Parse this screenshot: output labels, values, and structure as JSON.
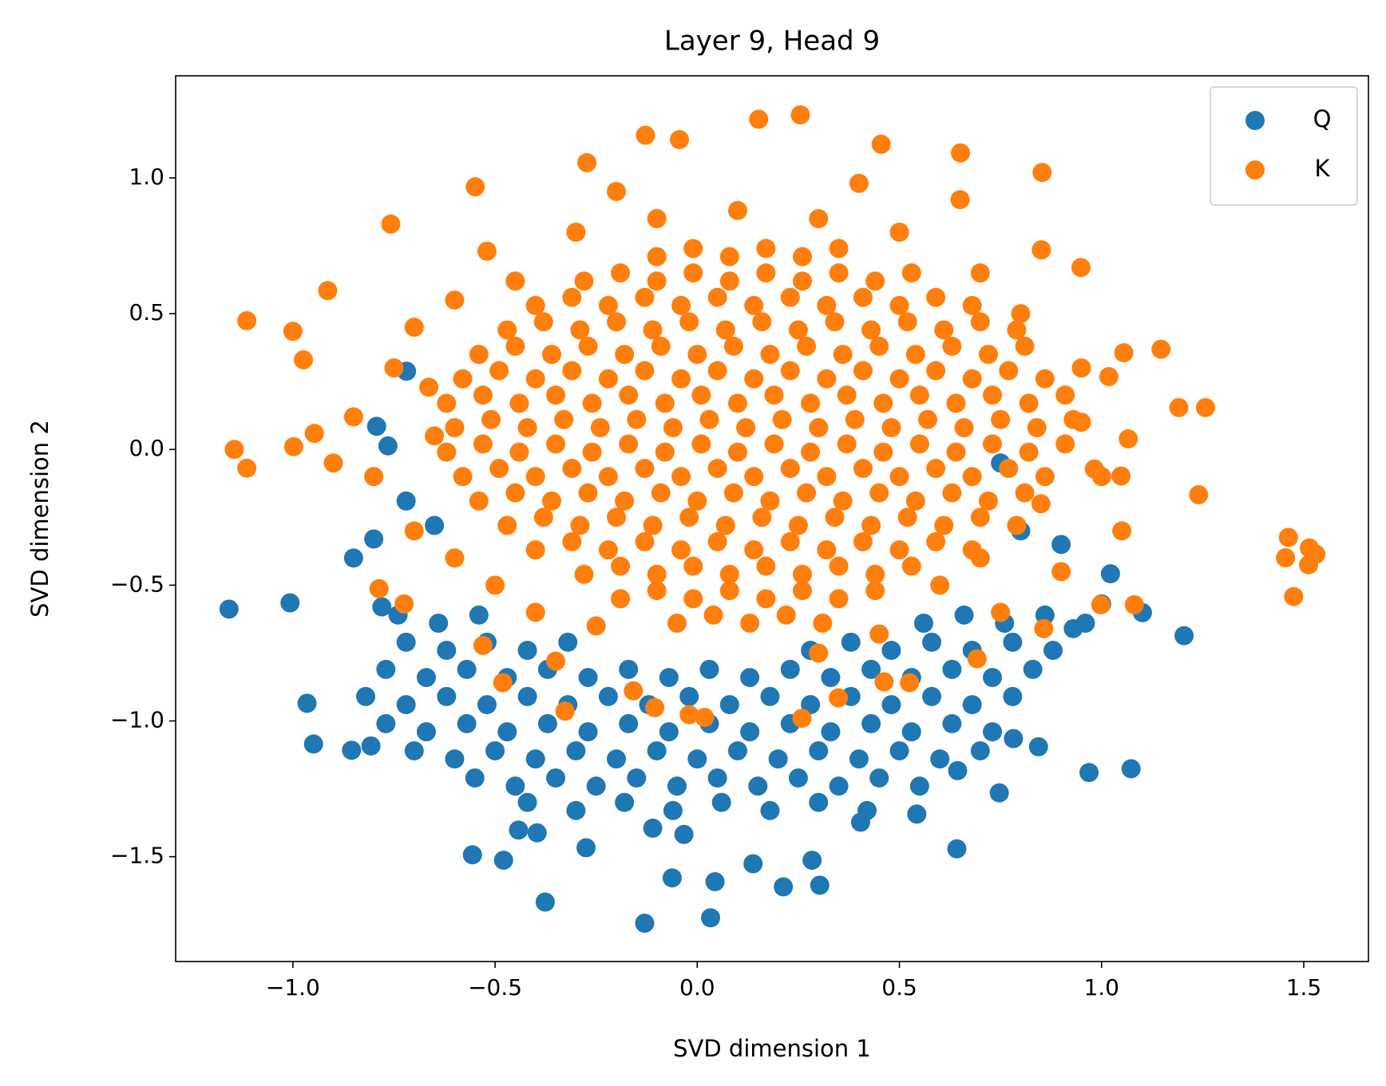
{
  "chart_data": {
    "type": "scatter",
    "title": "Layer 9, Head 9",
    "x_label": "SVD dimension 1",
    "y_label": "SVD dimension 2",
    "xlim": [
      -1.29,
      1.66
    ],
    "ylim": [
      -1.886,
      1.376
    ],
    "xticks": [
      {
        "value": -1.0,
        "label": "−1.0"
      },
      {
        "value": -0.5,
        "label": "−0.5"
      },
      {
        "value": 0.0,
        "label": "0.0"
      },
      0.5,
      {
        "value": 1.0,
        "label": "1.0"
      },
      1.5
    ],
    "yticks": [
      {
        "value": -1.5,
        "label": "−1.5"
      },
      {
        "value": -1.0,
        "label": "−1.0"
      },
      {
        "value": -0.5,
        "label": "−0.5"
      },
      {
        "value": 0.0,
        "label": "0.0"
      },
      0.5,
      {
        "value": 1.0,
        "label": "1.0"
      }
    ],
    "grid": false,
    "legend": "upper right",
    "series": [
      {
        "name": "Q",
        "color": "#1f77b4",
        "x": [
          -1.158,
          -1.007,
          -0.965,
          -0.949,
          -0.855,
          -0.807,
          -0.556,
          -0.479,
          -0.376,
          -0.13,
          0.033,
          -0.062,
          0.044,
          0.138,
          0.213,
          0.303,
          0.284,
          0.642,
          0.543,
          0.969,
          1.073,
          0.844,
          0.782,
          1.101,
          1.204,
          1.0,
          1.022,
          0.93,
          -0.719,
          -0.793,
          -0.765,
          -0.275,
          -0.396,
          -0.442,
          -0.11,
          -0.033,
          0.747,
          0.644,
          0.404,
          -0.72,
          -0.65,
          0.75,
          0.8,
          0.9,
          -0.85,
          -0.8,
          -0.78,
          -0.74,
          -0.64,
          -0.54,
          0.56,
          0.66,
          0.76,
          0.86,
          0.96,
          -0.72,
          -0.62,
          -0.52,
          -0.42,
          -0.32,
          0.28,
          0.38,
          0.48,
          0.58,
          0.68,
          0.78,
          0.88,
          -0.77,
          -0.67,
          -0.57,
          -0.47,
          -0.37,
          -0.27,
          -0.17,
          -0.07,
          0.03,
          0.13,
          0.23,
          0.33,
          0.43,
          0.53,
          0.63,
          0.73,
          0.83,
          -0.82,
          -0.72,
          -0.62,
          -0.52,
          -0.42,
          -0.32,
          -0.22,
          -0.12,
          -0.02,
          0.08,
          0.18,
          0.28,
          0.38,
          0.48,
          0.58,
          0.68,
          0.78,
          -0.77,
          -0.67,
          -0.57,
          -0.47,
          -0.37,
          -0.27,
          -0.17,
          -0.07,
          0.03,
          0.13,
          0.23,
          0.33,
          0.43,
          0.53,
          0.63,
          0.73,
          -0.7,
          -0.6,
          -0.5,
          -0.4,
          -0.3,
          -0.2,
          -0.1,
          0.0,
          0.1,
          0.2,
          0.3,
          0.4,
          0.5,
          0.6,
          0.7,
          -0.55,
          -0.45,
          -0.35,
          -0.25,
          -0.15,
          -0.05,
          0.05,
          0.15,
          0.25,
          0.35,
          0.45,
          0.55,
          -0.42,
          -0.3,
          -0.18,
          -0.06,
          0.06,
          0.18,
          0.3,
          0.42
        ],
        "values": [
          -0.588,
          -0.565,
          -0.935,
          -1.085,
          -1.108,
          -1.092,
          -1.493,
          -1.513,
          -1.667,
          -1.745,
          -1.725,
          -1.578,
          -1.592,
          -1.526,
          -1.611,
          -1.605,
          -1.513,
          -1.471,
          -1.343,
          -1.19,
          -1.176,
          -1.095,
          -1.065,
          -0.601,
          -0.686,
          -0.569,
          -0.458,
          -0.66,
          0.288,
          0.085,
          0.013,
          -1.467,
          -1.412,
          -1.402,
          -1.395,
          -1.418,
          -1.265,
          -1.183,
          -1.373,
          -0.19,
          -0.28,
          -0.05,
          -0.3,
          -0.35,
          -0.4,
          -0.33,
          -0.58,
          -0.61,
          -0.64,
          -0.61,
          -0.64,
          -0.61,
          -0.64,
          -0.61,
          -0.64,
          -0.71,
          -0.74,
          -0.71,
          -0.74,
          -0.71,
          -0.74,
          -0.71,
          -0.74,
          -0.71,
          -0.74,
          -0.71,
          -0.74,
          -0.81,
          -0.84,
          -0.81,
          -0.84,
          -0.81,
          -0.84,
          -0.81,
          -0.84,
          -0.81,
          -0.84,
          -0.81,
          -0.84,
          -0.81,
          -0.84,
          -0.81,
          -0.84,
          -0.81,
          -0.91,
          -0.94,
          -0.91,
          -0.94,
          -0.91,
          -0.94,
          -0.91,
          -0.94,
          -0.91,
          -0.94,
          -0.91,
          -0.94,
          -0.91,
          -0.94,
          -0.91,
          -0.94,
          -0.91,
          -1.01,
          -1.04,
          -1.01,
          -1.04,
          -1.01,
          -1.04,
          -1.01,
          -1.04,
          -1.01,
          -1.04,
          -1.01,
          -1.04,
          -1.01,
          -1.04,
          -1.01,
          -1.04,
          -1.11,
          -1.14,
          -1.11,
          -1.14,
          -1.11,
          -1.14,
          -1.11,
          -1.14,
          -1.11,
          -1.14,
          -1.11,
          -1.14,
          -1.11,
          -1.14,
          -1.11,
          -1.21,
          -1.24,
          -1.21,
          -1.24,
          -1.21,
          -1.24,
          -1.21,
          -1.24,
          -1.21,
          -1.24,
          -1.21,
          -1.24,
          -1.3,
          -1.33,
          -1.3,
          -1.33,
          -1.3,
          -1.33,
          -1.3,
          -1.33
        ]
      },
      {
        "name": "K",
        "color": "#ff7f0e",
        "x": [
          -1.114,
          -1.145,
          -1.114,
          -1.0,
          -0.974,
          -0.998,
          -0.947,
          -0.914,
          -0.758,
          -0.549,
          -0.273,
          -0.128,
          -0.044,
          0.152,
          0.255,
          0.455,
          0.651,
          0.853,
          0.851,
          0.949,
          1.055,
          1.147,
          1.191,
          1.257,
          1.24,
          1.462,
          1.455,
          1.514,
          1.53,
          1.512,
          1.475,
          1.081,
          0.998,
          0.857,
          1.048,
          0.982,
          1.066,
          1.018,
          0.259,
          0.018,
          -0.02,
          -0.327,
          -0.105,
          0.349,
          -0.481,
          -0.53,
          -0.664,
          -0.787,
          -0.725,
          0.692,
          0.462,
          0.525,
          -0.158,
          -0.45,
          -0.6,
          -0.7,
          -0.75,
          -0.8,
          -0.7,
          -0.6,
          -0.5,
          -0.4,
          -0.25,
          0.6,
          0.7,
          0.85,
          0.95,
          0.95,
          0.8,
          0.7,
          0.5,
          0.3,
          0.1,
          -0.1,
          -0.3,
          -0.52,
          -0.85,
          -0.9,
          0.65,
          0.4,
          -0.2,
          1.05,
          0.9,
          0.75,
          -0.35,
          0.3,
          0.45,
          -0.65,
          1.0,
          -0.1,
          -0.01,
          0.08,
          0.17,
          0.26,
          0.35,
          -0.28,
          -0.19,
          -0.1,
          -0.01,
          0.08,
          0.17,
          0.26,
          0.35,
          0.44,
          0.53,
          -0.4,
          -0.31,
          -0.22,
          -0.13,
          -0.04,
          0.05,
          0.14,
          0.23,
          0.32,
          0.41,
          0.5,
          0.59,
          0.68,
          -0.47,
          -0.38,
          -0.29,
          -0.2,
          -0.11,
          -0.02,
          0.07,
          0.16,
          0.25,
          0.34,
          0.43,
          0.52,
          0.61,
          0.7,
          0.79,
          -0.54,
          -0.45,
          -0.36,
          -0.27,
          -0.18,
          -0.09,
          0.0,
          0.09,
          0.18,
          0.27,
          0.36,
          0.45,
          0.54,
          0.63,
          0.72,
          0.81,
          -0.58,
          -0.49,
          -0.4,
          -0.31,
          -0.22,
          -0.13,
          -0.04,
          0.05,
          0.14,
          0.23,
          0.32,
          0.41,
          0.5,
          0.59,
          0.68,
          0.77,
          0.86,
          -0.62,
          -0.53,
          -0.44,
          -0.35,
          -0.26,
          -0.17,
          -0.08,
          0.01,
          0.1,
          0.19,
          0.28,
          0.37,
          0.46,
          0.55,
          0.64,
          0.73,
          0.82,
          0.91,
          -0.6,
          -0.51,
          -0.42,
          -0.33,
          -0.24,
          -0.15,
          -0.06,
          0.03,
          0.12,
          0.21,
          0.3,
          0.39,
          0.48,
          0.57,
          0.66,
          0.75,
          0.84,
          0.93,
          -0.62,
          -0.53,
          -0.44,
          -0.35,
          -0.26,
          -0.17,
          -0.08,
          0.01,
          0.1,
          0.19,
          0.28,
          0.37,
          0.46,
          0.55,
          0.64,
          0.73,
          0.82,
          0.91,
          -0.58,
          -0.49,
          -0.4,
          -0.31,
          -0.22,
          -0.13,
          -0.04,
          0.05,
          0.14,
          0.23,
          0.32,
          0.41,
          0.5,
          0.59,
          0.68,
          0.77,
          0.86,
          -0.54,
          -0.45,
          -0.36,
          -0.27,
          -0.18,
          -0.09,
          0.0,
          0.09,
          0.18,
          0.27,
          0.36,
          0.45,
          0.54,
          0.63,
          0.72,
          0.81,
          -0.47,
          -0.38,
          -0.29,
          -0.2,
          -0.11,
          -0.02,
          0.07,
          0.16,
          0.25,
          0.34,
          0.43,
          0.52,
          0.61,
          0.7,
          0.79,
          -0.4,
          -0.31,
          -0.22,
          -0.13,
          -0.04,
          0.05,
          0.14,
          0.23,
          0.32,
          0.41,
          0.5,
          0.59,
          0.68,
          -0.28,
          -0.19,
          -0.1,
          -0.01,
          0.08,
          0.17,
          0.26,
          0.35,
          0.44,
          0.53,
          -0.19,
          -0.1,
          -0.01,
          0.08,
          0.17,
          0.26,
          0.35,
          0.44,
          -0.05,
          0.04,
          0.13,
          0.22,
          0.31
        ],
        "values": [
          0.474,
          0.0,
          -0.069,
          0.435,
          0.33,
          0.01,
          0.059,
          0.585,
          0.83,
          0.967,
          1.056,
          1.157,
          1.141,
          1.216,
          1.232,
          1.124,
          1.092,
          1.02,
          0.735,
          0.67,
          0.356,
          0.369,
          0.154,
          0.154,
          -0.167,
          -0.324,
          -0.399,
          -0.363,
          -0.386,
          -0.425,
          -0.542,
          -0.572,
          -0.572,
          -0.66,
          -0.098,
          -0.072,
          0.039,
          0.268,
          -0.99,
          -0.987,
          -0.977,
          -0.964,
          -0.951,
          -0.915,
          -0.859,
          -0.722,
          0.229,
          -0.513,
          -0.569,
          -0.771,
          -0.856,
          -0.859,
          -0.889,
          0.62,
          0.55,
          0.45,
          0.3,
          -0.1,
          -0.3,
          -0.4,
          -0.5,
          -0.6,
          -0.65,
          -0.5,
          -0.4,
          -0.2,
          0.1,
          0.3,
          0.5,
          0.65,
          0.8,
          0.85,
          0.88,
          0.85,
          0.8,
          0.73,
          0.12,
          -0.05,
          0.92,
          0.98,
          0.95,
          -0.3,
          -0.45,
          -0.6,
          -0.78,
          -0.75,
          -0.68,
          0.05,
          -0.1,
          0.71,
          0.74,
          0.71,
          0.74,
          0.71,
          0.74,
          0.62,
          0.65,
          0.62,
          0.65,
          0.62,
          0.65,
          0.62,
          0.65,
          0.62,
          0.65,
          0.53,
          0.56,
          0.53,
          0.56,
          0.53,
          0.56,
          0.53,
          0.56,
          0.53,
          0.56,
          0.53,
          0.56,
          0.53,
          0.44,
          0.47,
          0.44,
          0.47,
          0.44,
          0.47,
          0.44,
          0.47,
          0.44,
          0.47,
          0.44,
          0.47,
          0.44,
          0.47,
          0.44,
          0.35,
          0.38,
          0.35,
          0.38,
          0.35,
          0.38,
          0.35,
          0.38,
          0.35,
          0.38,
          0.35,
          0.38,
          0.35,
          0.38,
          0.35,
          0.38,
          0.26,
          0.29,
          0.26,
          0.29,
          0.26,
          0.29,
          0.26,
          0.29,
          0.26,
          0.29,
          0.26,
          0.29,
          0.26,
          0.29,
          0.26,
          0.29,
          0.26,
          0.17,
          0.2,
          0.17,
          0.2,
          0.17,
          0.2,
          0.17,
          0.2,
          0.17,
          0.2,
          0.17,
          0.2,
          0.17,
          0.2,
          0.17,
          0.2,
          0.17,
          0.2,
          0.08,
          0.11,
          0.08,
          0.11,
          0.08,
          0.11,
          0.08,
          0.11,
          0.08,
          0.11,
          0.08,
          0.11,
          0.08,
          0.11,
          0.08,
          0.11,
          0.08,
          0.11,
          -0.01,
          0.02,
          -0.01,
          0.02,
          -0.01,
          0.02,
          -0.01,
          0.02,
          -0.01,
          0.02,
          -0.01,
          0.02,
          -0.01,
          0.02,
          -0.01,
          0.02,
          -0.01,
          0.02,
          -0.1,
          -0.07,
          -0.1,
          -0.07,
          -0.1,
          -0.07,
          -0.1,
          -0.07,
          -0.1,
          -0.07,
          -0.1,
          -0.07,
          -0.1,
          -0.07,
          -0.1,
          -0.07,
          -0.1,
          -0.19,
          -0.16,
          -0.19,
          -0.16,
          -0.19,
          -0.16,
          -0.19,
          -0.16,
          -0.19,
          -0.16,
          -0.19,
          -0.16,
          -0.19,
          -0.16,
          -0.19,
          -0.16,
          -0.28,
          -0.25,
          -0.28,
          -0.25,
          -0.28,
          -0.25,
          -0.28,
          -0.25,
          -0.28,
          -0.25,
          -0.28,
          -0.25,
          -0.28,
          -0.25,
          -0.28,
          -0.37,
          -0.34,
          -0.37,
          -0.34,
          -0.37,
          -0.34,
          -0.37,
          -0.34,
          -0.37,
          -0.34,
          -0.37,
          -0.34,
          -0.37,
          -0.46,
          -0.43,
          -0.46,
          -0.43,
          -0.46,
          -0.43,
          -0.46,
          -0.43,
          -0.46,
          -0.43,
          -0.55,
          -0.52,
          -0.55,
          -0.52,
          -0.55,
          -0.52,
          -0.55,
          -0.52,
          -0.64,
          -0.61,
          -0.64,
          -0.61,
          -0.64
        ]
      }
    ]
  }
}
